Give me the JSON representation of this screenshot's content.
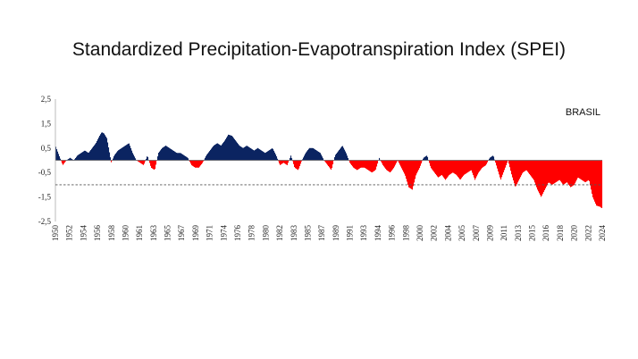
{
  "chart_data": {
    "type": "area",
    "title": "Standardized Precipitation-Evapotranspiration Index (SPEI)",
    "annotation": "BRASIL",
    "xlabel": "",
    "ylabel": "",
    "ylim": [
      -2.5,
      2.5
    ],
    "yticks": [
      "2,5",
      "1,5",
      "0,5",
      "-0,5",
      "-1,5",
      "-2,5"
    ],
    "xticks": [
      "1950",
      "1952",
      "1954",
      "1956",
      "1958",
      "1960",
      "1961",
      "1963",
      "1965",
      "1967",
      "1969",
      "1971",
      "1974",
      "1976",
      "1978",
      "1980",
      "1982",
      "1983",
      "1985",
      "1987",
      "1989",
      "1991",
      "1993",
      "1994",
      "1996",
      "1998",
      "2000",
      "2002",
      "2004",
      "2005",
      "2007",
      "2009",
      "2011",
      "2013",
      "2015",
      "2016",
      "2018",
      "2020",
      "2022",
      "2024"
    ],
    "threshold": -1.0,
    "colors": {
      "positive": "#0b2461",
      "negative": "#ff0000",
      "threshold": "#555555"
    },
    "grid": false,
    "series": [
      {
        "x": [
          1950.0,
          1950.5,
          1951.0,
          1951.5,
          1952.0,
          1952.5,
          1953.0,
          1953.5,
          1954.0,
          1954.5,
          1955.0,
          1955.5,
          1956.0,
          1956.3,
          1956.6,
          1957.0,
          1957.3,
          1957.6,
          1958.0,
          1958.5,
          1959.0,
          1959.5,
          1960.0,
          1960.5,
          1961.0,
          1961.5,
          1962.0,
          1962.5,
          1963.0,
          1963.5,
          1964.0,
          1964.5,
          1965.0,
          1965.5,
          1966.0,
          1966.5,
          1967.0,
          1967.5,
          1968.0,
          1968.5,
          1969.0,
          1969.5,
          1970.0,
          1970.5,
          1971.0,
          1971.5,
          1972.0,
          1972.5,
          1973.0,
          1973.5,
          1974.0,
          1974.5,
          1975.0,
          1975.5,
          1976.0,
          1976.5,
          1977.0,
          1977.5,
          1978.0,
          1978.5,
          1979.0,
          1979.5,
          1980.0,
          1980.5,
          1981.0,
          1981.5,
          1982.0,
          1982.5,
          1983.0,
          1983.5,
          1984.0,
          1984.5,
          1985.0,
          1985.5,
          1986.0,
          1986.5,
          1987.0,
          1987.5,
          1988.0,
          1988.5,
          1989.0,
          1989.5,
          1990.0,
          1990.5,
          1991.0,
          1991.5,
          1992.0,
          1992.5,
          1993.0,
          1993.5,
          1994.0,
          1994.5,
          1995.0,
          1995.5,
          1996.0,
          1996.5,
          1997.0,
          1997.5,
          1998.0,
          1998.5,
          1999.0,
          1999.5,
          2000.0,
          2000.5,
          2001.0,
          2001.5,
          2002.0,
          2002.5,
          2003.0,
          2003.5,
          2004.0,
          2004.5,
          2005.0,
          2005.5,
          2006.0,
          2006.5,
          2007.0,
          2007.5,
          2008.0,
          2008.5,
          2009.0,
          2009.5,
          2010.0,
          2010.5,
          2011.0,
          2011.5,
          2012.0,
          2012.5,
          2013.0,
          2013.5,
          2014.0,
          2014.5,
          2015.0,
          2015.5,
          2016.0,
          2016.5,
          2017.0,
          2017.5,
          2018.0,
          2018.5,
          2019.0,
          2019.5,
          2020.0,
          2020.5,
          2021.0,
          2021.5,
          2022.0,
          2022.5,
          2023.0,
          2023.5,
          2024.0,
          2024.2
        ],
        "values": [
          0.6,
          0.2,
          -0.2,
          0.0,
          0.1,
          0.0,
          0.2,
          0.3,
          0.4,
          0.3,
          0.5,
          0.7,
          1.0,
          1.15,
          1.1,
          0.9,
          0.4,
          -0.1,
          0.2,
          0.4,
          0.5,
          0.6,
          0.7,
          0.3,
          0.0,
          -0.1,
          -0.2,
          0.2,
          -0.3,
          -0.4,
          0.3,
          0.5,
          0.6,
          0.5,
          0.4,
          0.3,
          0.3,
          0.2,
          0.1,
          -0.2,
          -0.3,
          -0.3,
          -0.1,
          0.2,
          0.4,
          0.6,
          0.7,
          0.6,
          0.8,
          1.05,
          1.0,
          0.8,
          0.6,
          0.5,
          0.6,
          0.5,
          0.4,
          0.5,
          0.4,
          0.3,
          0.4,
          0.5,
          0.2,
          -0.2,
          -0.1,
          -0.2,
          0.2,
          -0.3,
          -0.4,
          0.0,
          0.3,
          0.5,
          0.5,
          0.4,
          0.3,
          0.0,
          -0.2,
          -0.4,
          0.2,
          0.4,
          0.6,
          0.3,
          -0.1,
          -0.3,
          -0.4,
          -0.3,
          -0.3,
          -0.4,
          -0.5,
          -0.4,
          0.1,
          -0.2,
          -0.4,
          -0.5,
          -0.3,
          0.0,
          -0.3,
          -0.6,
          -1.1,
          -1.2,
          -0.6,
          -0.3,
          0.1,
          0.2,
          -0.3,
          -0.5,
          -0.7,
          -0.6,
          -0.8,
          -0.6,
          -0.5,
          -0.6,
          -0.8,
          -0.6,
          -0.5,
          -0.4,
          -0.8,
          -0.5,
          -0.3,
          -0.2,
          0.1,
          0.2,
          -0.3,
          -0.8,
          -0.4,
          0.0,
          -0.6,
          -1.1,
          -0.8,
          -0.5,
          -0.4,
          -0.6,
          -0.8,
          -1.2,
          -1.5,
          -1.2,
          -0.9,
          -1.0,
          -0.9,
          -0.8,
          -1.0,
          -0.9,
          -1.1,
          -1.0,
          -0.7,
          -0.8,
          -0.9,
          -0.8,
          -1.5,
          -1.85,
          -1.9,
          -1.95
        ]
      }
    ]
  }
}
